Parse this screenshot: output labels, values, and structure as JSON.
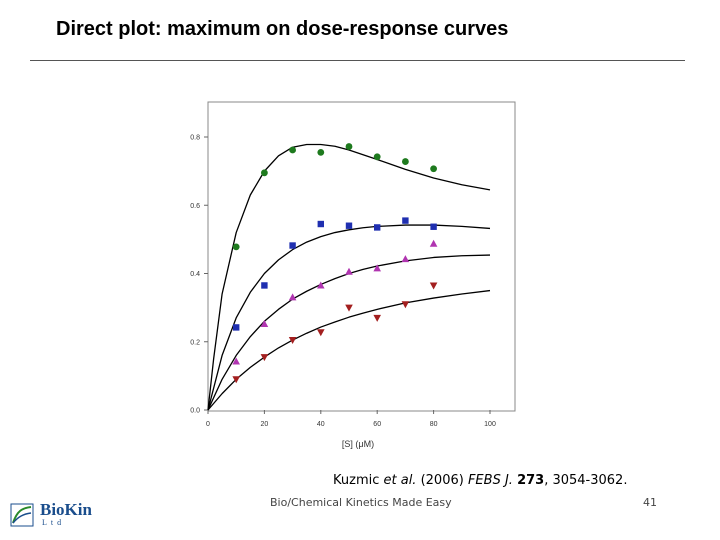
{
  "slide": {
    "title": "Direct plot: maximum on dose-response curves",
    "citation": {
      "authors": "Kuzmic ",
      "etal": "et al.",
      "year": " (2006) ",
      "journal": "FEBS J.",
      "space": " ",
      "volume": "273",
      "pages": ", 3054-3062."
    },
    "footer": "Bio/Chemical Kinetics Made Easy",
    "page_number": "41",
    "logo": {
      "name": "BioKin",
      "sub": "Ltd"
    }
  },
  "chart_data": {
    "type": "scatter",
    "title": "",
    "xlabel": "[S] (μM)",
    "ylabel": "",
    "xlim": [
      0,
      100
    ],
    "ylim": [
      0,
      0.88
    ],
    "xticks": [
      0,
      20,
      40,
      60,
      80,
      100
    ],
    "yticks": [
      0.0,
      0.2,
      0.4,
      0.6,
      0.8
    ],
    "grid": false,
    "series": [
      {
        "marker": "circle",
        "color": "#1e7a1e",
        "x": [
          10,
          20,
          30,
          40,
          50,
          60,
          70,
          80
        ],
        "y": [
          0.478,
          0.695,
          0.762,
          0.755,
          0.772,
          0.742,
          0.728,
          0.707
        ],
        "fit": {
          "x": [
            0,
            2,
            5,
            10,
            15,
            20,
            25,
            30,
            35,
            40,
            45,
            50,
            55,
            60,
            70,
            80,
            90,
            100
          ],
          "y": [
            0.0,
            0.15,
            0.34,
            0.52,
            0.63,
            0.7,
            0.745,
            0.77,
            0.778,
            0.778,
            0.773,
            0.762,
            0.748,
            0.734,
            0.705,
            0.68,
            0.66,
            0.645
          ]
        }
      },
      {
        "marker": "square",
        "color": "#1f2fb0",
        "x": [
          10,
          20,
          30,
          40,
          50,
          60,
          70,
          80
        ],
        "y": [
          0.242,
          0.365,
          0.482,
          0.545,
          0.54,
          0.535,
          0.555,
          0.537
        ],
        "fit": {
          "x": [
            0,
            5,
            10,
            15,
            20,
            25,
            30,
            35,
            40,
            45,
            50,
            55,
            60,
            70,
            80,
            90,
            100
          ],
          "y": [
            0.0,
            0.16,
            0.27,
            0.345,
            0.4,
            0.44,
            0.47,
            0.492,
            0.508,
            0.52,
            0.528,
            0.534,
            0.538,
            0.542,
            0.542,
            0.538,
            0.532
          ]
        }
      },
      {
        "marker": "triangle-up",
        "color": "#b035b0",
        "x": [
          10,
          20,
          30,
          40,
          50,
          60,
          70,
          80
        ],
        "y": [
          0.142,
          0.252,
          0.33,
          0.365,
          0.405,
          0.415,
          0.442,
          0.487
        ],
        "fit": {
          "x": [
            0,
            5,
            10,
            15,
            20,
            25,
            30,
            35,
            40,
            45,
            50,
            55,
            60,
            70,
            80,
            90,
            100
          ],
          "y": [
            0.0,
            0.09,
            0.16,
            0.215,
            0.26,
            0.295,
            0.325,
            0.348,
            0.368,
            0.385,
            0.4,
            0.412,
            0.422,
            0.437,
            0.447,
            0.452,
            0.454
          ]
        }
      },
      {
        "marker": "triangle-down",
        "color": "#a31f1f",
        "x": [
          10,
          20,
          30,
          40,
          50,
          60,
          70,
          80
        ],
        "y": [
          0.09,
          0.155,
          0.205,
          0.228,
          0.3,
          0.27,
          0.31,
          0.365
        ],
        "fit": {
          "x": [
            0,
            5,
            10,
            15,
            20,
            25,
            30,
            35,
            40,
            45,
            50,
            55,
            60,
            70,
            80,
            90,
            100
          ],
          "y": [
            0.0,
            0.048,
            0.09,
            0.125,
            0.155,
            0.182,
            0.205,
            0.225,
            0.243,
            0.258,
            0.272,
            0.284,
            0.295,
            0.314,
            0.328,
            0.34,
            0.35
          ]
        }
      }
    ]
  }
}
